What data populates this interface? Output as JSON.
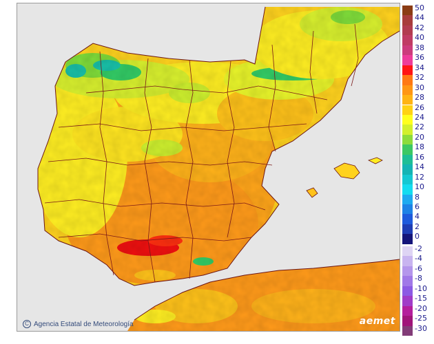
{
  "map": {
    "colors": {
      "sea": "#e6e6e6",
      "border": "#6b1414",
      "v14": "#19c0a8",
      "v18": "#33cc66",
      "v20": "#7fdc3a",
      "v22": "#cdef2e",
      "v24": "#ffff22",
      "v26": "#ffe51a",
      "v28": "#ffc21a",
      "v30": "#ff9a1a",
      "v32": "#ff7a12",
      "v34": "#f01010"
    },
    "credit": "Agencia Estatal de Meteorología",
    "credit_icon": "copyright-icon",
    "logo": "aemet"
  },
  "legend": {
    "warm": [
      {
        "label": "50",
        "color": "#8b3c14"
      },
      {
        "label": "44",
        "color": "#a83c3c"
      },
      {
        "label": "42",
        "color": "#b23c50"
      },
      {
        "label": "40",
        "color": "#c03c64"
      },
      {
        "label": "38",
        "color": "#cc3c7c"
      },
      {
        "label": "36",
        "color": "#ee3c9a"
      },
      {
        "label": "34",
        "color": "#ff1414"
      },
      {
        "label": "32",
        "color": "#ff7814"
      },
      {
        "label": "30",
        "color": "#ff9614"
      },
      {
        "label": "28",
        "color": "#ffb414"
      },
      {
        "label": "26",
        "color": "#ffd214"
      },
      {
        "label": "24",
        "color": "#ffff1e"
      },
      {
        "label": "22",
        "color": "#d2f02d"
      },
      {
        "label": "20",
        "color": "#8cdc3c"
      },
      {
        "label": "18",
        "color": "#3cc864"
      },
      {
        "label": "16",
        "color": "#1ebe96"
      },
      {
        "label": "14",
        "color": "#14b4b4"
      },
      {
        "label": "12",
        "color": "#14c8d2"
      },
      {
        "label": "10",
        "color": "#14dcf0"
      },
      {
        "label": "8",
        "color": "#1eaaf0"
      },
      {
        "label": "6",
        "color": "#1e82e6"
      },
      {
        "label": "4",
        "color": "#1e5adc"
      },
      {
        "label": "2",
        "color": "#1e3cb4"
      },
      {
        "label": "0",
        "color": "#14147a"
      }
    ],
    "cold": [
      {
        "label": "-2",
        "color": "#ded4f4"
      },
      {
        "label": "-4",
        "color": "#c8b4f0"
      },
      {
        "label": "-6",
        "color": "#b496ec"
      },
      {
        "label": "-8",
        "color": "#a078e8"
      },
      {
        "label": "-10",
        "color": "#8c5ae4"
      },
      {
        "label": "-15",
        "color": "#a03cc8"
      },
      {
        "label": "-20",
        "color": "#b41e9c"
      },
      {
        "label": "-25",
        "color": "#a0147a"
      },
      {
        "label": "-30",
        "color": "#823c78"
      }
    ]
  }
}
